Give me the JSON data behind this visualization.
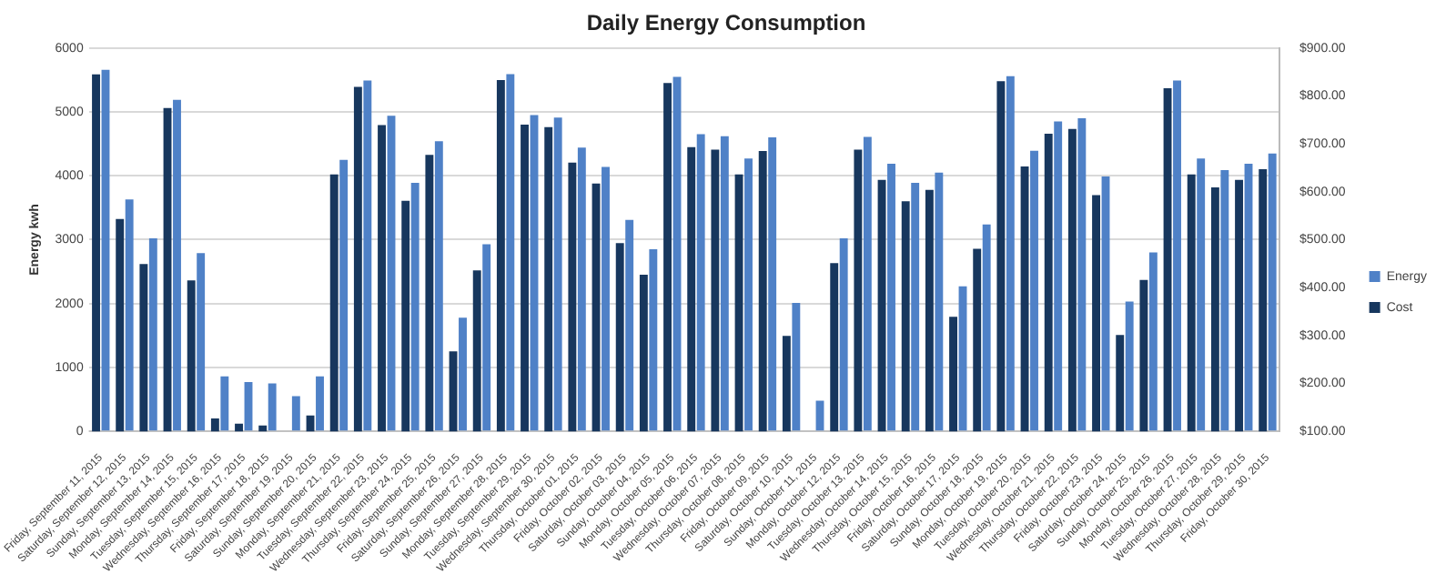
{
  "chart_data": {
    "type": "bar",
    "title": "Daily Energy Consumption",
    "ylabel": "Energy kwh",
    "categories": [
      "Friday, September 11, 2015",
      "Saturday, September 12, 2015",
      "Sunday, September 13, 2015",
      "Monday, September 14, 2015",
      "Tuesday, September 15, 2015",
      "Wednesday, September 16, 2015",
      "Thursday, September 17, 2015",
      "Friday, September 18, 2015",
      "Saturday, September 19, 2015",
      "Sunday, September 20, 2015",
      "Monday, September 21, 2015",
      "Tuesday, September 22, 2015",
      "Wednesday, September 23, 2015",
      "Thursday, September 24, 2015",
      "Friday, September 25, 2015",
      "Saturday, September 26, 2015",
      "Sunday, September 27, 2015",
      "Monday, September 28, 2015",
      "Tuesday, September 29, 2015",
      "Wednesday, September 30, 2015",
      "Thursday, October 01, 2015",
      "Friday, October 02, 2015",
      "Saturday, October 03, 2015",
      "Sunday, October 04, 2015",
      "Monday, October 05, 2015",
      "Tuesday, October 06, 2015",
      "Wednesday, October 07, 2015",
      "Thursday, October 08, 2015",
      "Friday, October 09, 2015",
      "Saturday, October 10, 2015",
      "Sunday, October 11, 2015",
      "Monday, October 12, 2015",
      "Tuesday, October 13, 2015",
      "Wednesday, October 14, 2015",
      "Thursday, October 15, 2015",
      "Friday, October 16, 2015",
      "Saturday, October 17, 2015",
      "Sunday, October 18, 2015",
      "Monday, October 19, 2015",
      "Tuesday, October 20, 2015",
      "Wednesday, October 21, 2015",
      "Thursday, October 22, 2015",
      "Friday, October 23, 2015",
      "Saturday, October 24, 2015",
      "Sunday, October 25, 2015",
      "Monday, October 26, 2015",
      "Tuesday, October 27, 2015",
      "Wednesday, October 28, 2015",
      "Thursday, October 29, 2015",
      "Friday, October 30, 2015"
    ],
    "series": [
      {
        "name": "Energy",
        "color": "#4f81c7",
        "values": [
          5660,
          3630,
          3020,
          5190,
          2790,
          860,
          770,
          750,
          550,
          860,
          4250,
          5490,
          4940,
          3890,
          4540,
          1780,
          2930,
          5590,
          4950,
          4910,
          4440,
          4140,
          3310,
          2850,
          5550,
          4650,
          4620,
          4270,
          4600,
          2010,
          480,
          3020,
          4610,
          4190,
          3890,
          4050,
          2270,
          3240,
          5560,
          4390,
          4850,
          4900,
          3990,
          2030,
          2800,
          5490,
          4270,
          4090,
          4190,
          4350
        ]
      },
      {
        "name": "Cost",
        "color": "#17375e",
        "axis": "y2",
        "values": [
          845,
          543,
          449,
          775,
          415,
          127,
          116,
          112,
          null,
          133,
          636,
          819,
          739,
          581,
          677,
          267,
          436,
          833,
          740,
          735,
          661,
          617,
          493,
          427,
          827,
          693,
          688,
          636,
          685,
          299,
          null,
          451,
          688,
          625,
          580,
          604,
          339,
          481,
          831,
          653,
          721,
          731,
          593,
          301,
          416,
          816,
          636,
          609,
          625,
          647
        ]
      }
    ],
    "ylim": [
      0,
      6000
    ],
    "yticks": [
      0,
      1000,
      2000,
      3000,
      4000,
      5000,
      6000
    ],
    "y2lim": [
      100,
      900
    ],
    "y2ticks": [
      {
        "value": 100,
        "label": "$100.00"
      },
      {
        "value": 200,
        "label": "$200.00"
      },
      {
        "value": 300,
        "label": "$300.00"
      },
      {
        "value": 400,
        "label": "$400.00"
      },
      {
        "value": 500,
        "label": "$500.00"
      },
      {
        "value": 600,
        "label": "$600.00"
      },
      {
        "value": 700,
        "label": "$700.00"
      },
      {
        "value": 800,
        "label": "$800.00"
      },
      {
        "value": 900,
        "label": "$900.00"
      }
    ],
    "grid": "y",
    "legend": "right"
  }
}
